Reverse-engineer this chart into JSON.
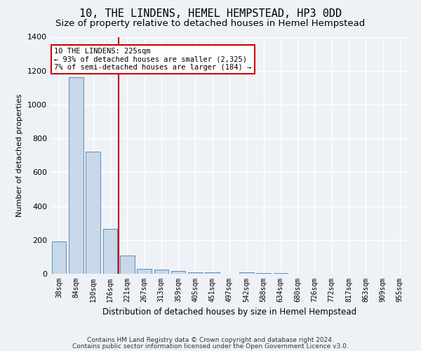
{
  "title": "10, THE LINDENS, HEMEL HEMPSTEAD, HP3 0DD",
  "subtitle": "Size of property relative to detached houses in Hemel Hempstead",
  "xlabel": "Distribution of detached houses by size in Hemel Hempstead",
  "ylabel": "Number of detached properties",
  "footnote1": "Contains HM Land Registry data © Crown copyright and database right 2024.",
  "footnote2": "Contains public sector information licensed under the Open Government Licence v3.0.",
  "bar_labels": [
    "38sqm",
    "84sqm",
    "130sqm",
    "176sqm",
    "221sqm",
    "267sqm",
    "313sqm",
    "359sqm",
    "405sqm",
    "451sqm",
    "497sqm",
    "542sqm",
    "588sqm",
    "634sqm",
    "680sqm",
    "726sqm",
    "772sqm",
    "817sqm",
    "863sqm",
    "909sqm",
    "955sqm"
  ],
  "bar_values": [
    192,
    1160,
    720,
    265,
    107,
    30,
    25,
    18,
    10,
    8,
    0,
    10,
    5,
    3,
    2,
    1,
    1,
    0,
    0,
    0,
    0
  ],
  "bar_color": "#c8d8e8",
  "bar_edge_color": "#5b8db8",
  "vline_x_index": 4,
  "vline_color": "#cc0000",
  "annotation_text": "10 THE LINDENS: 225sqm\n← 93% of detached houses are smaller (2,325)\n7% of semi-detached houses are larger (184) →",
  "annotation_box_color": "#ffffff",
  "annotation_box_edge": "#cc0000",
  "ylim": [
    0,
    1400
  ],
  "yticks": [
    0,
    200,
    400,
    600,
    800,
    1000,
    1200,
    1400
  ],
  "bg_color": "#eef2f7",
  "grid_color": "#ffffff",
  "title_fontsize": 11,
  "subtitle_fontsize": 9.5,
  "footnote_fontsize": 6.5
}
